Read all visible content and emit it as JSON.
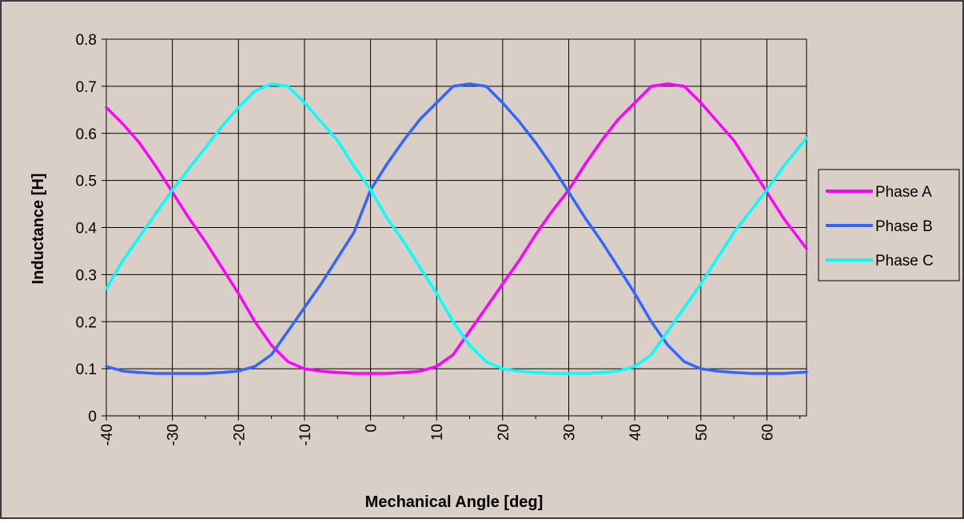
{
  "chart_data": {
    "type": "line",
    "title": "",
    "xlabel": "Mechanical Angle [deg]",
    "ylabel": "Inductance [H]",
    "xlim": [
      -40,
      66
    ],
    "ylim": [
      0,
      0.8
    ],
    "x_ticks": [
      "-40",
      "-30",
      "-20",
      "-10",
      "0",
      "10",
      "20",
      "30",
      "40",
      "50",
      "60"
    ],
    "y_ticks": [
      "0",
      "0.1",
      "0.2",
      "0.3",
      "0.4",
      "0.5",
      "0.6",
      "0.7",
      "0.8"
    ],
    "grid": true,
    "legend_position": "right",
    "background": "#d9cfc6",
    "x": [
      -40,
      -37.5,
      -35,
      -32.5,
      -30,
      -27.5,
      -25,
      -22.5,
      -20,
      -17.5,
      -15,
      -12.5,
      -10,
      -7.5,
      -5,
      -2.5,
      0,
      2.5,
      5,
      7.5,
      10,
      12.5,
      15,
      17.5,
      20,
      22.5,
      25,
      27.5,
      30,
      32.5,
      35,
      37.5,
      40,
      42.5,
      45,
      47.5,
      50,
      52.5,
      55,
      57.5,
      60,
      62.5,
      66
    ],
    "series": [
      {
        "name": "Phase A",
        "color": "#ff00ff",
        "values": [
          0.655,
          0.62,
          0.58,
          0.53,
          0.475,
          0.42,
          0.37,
          0.315,
          0.26,
          0.2,
          0.15,
          0.115,
          0.1,
          0.095,
          0.092,
          0.09,
          0.09,
          0.09,
          0.092,
          0.095,
          0.105,
          0.13,
          0.18,
          0.23,
          0.28,
          0.33,
          0.385,
          0.435,
          0.48,
          0.535,
          0.585,
          0.63,
          0.665,
          0.7,
          0.705,
          0.7,
          0.665,
          0.625,
          0.585,
          0.53,
          0.475,
          0.42,
          0.355
        ]
      },
      {
        "name": "Phase B",
        "color": "#3366ff",
        "values": [
          0.105,
          0.095,
          0.092,
          0.09,
          0.09,
          0.09,
          0.09,
          0.092,
          0.095,
          0.105,
          0.13,
          0.18,
          0.23,
          0.28,
          0.335,
          0.39,
          0.48,
          0.535,
          0.585,
          0.63,
          0.665,
          0.7,
          0.705,
          0.7,
          0.665,
          0.625,
          0.58,
          0.53,
          0.475,
          0.42,
          0.37,
          0.315,
          0.26,
          0.2,
          0.15,
          0.115,
          0.1,
          0.095,
          0.092,
          0.09,
          0.09,
          0.09,
          0.093
        ]
      },
      {
        "name": "Phase C",
        "color": "#00ffff",
        "values": [
          0.27,
          0.33,
          0.38,
          0.43,
          0.48,
          0.525,
          0.57,
          0.615,
          0.655,
          0.69,
          0.705,
          0.7,
          0.665,
          0.625,
          0.585,
          0.53,
          0.48,
          0.42,
          0.37,
          0.315,
          0.26,
          0.2,
          0.15,
          0.115,
          0.1,
          0.095,
          0.092,
          0.09,
          0.09,
          0.09,
          0.092,
          0.095,
          0.105,
          0.13,
          0.18,
          0.23,
          0.28,
          0.335,
          0.39,
          0.435,
          0.48,
          0.53,
          0.59
        ]
      }
    ]
  }
}
